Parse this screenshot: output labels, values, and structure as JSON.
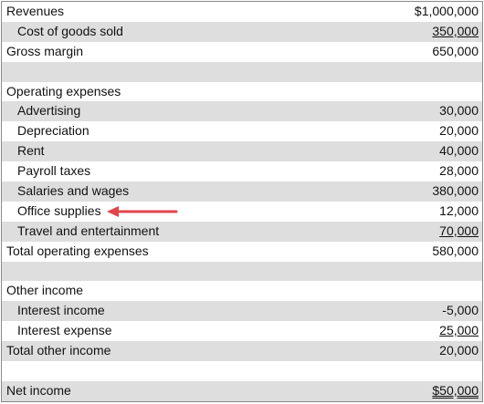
{
  "rows": [
    {
      "label": "Revenues",
      "value": "$1,000,000",
      "indent": false,
      "shaded": false,
      "underline": "none"
    },
    {
      "label": "Cost of goods sold",
      "value": "350,000",
      "indent": true,
      "shaded": true,
      "underline": "single"
    },
    {
      "label": "Gross margin",
      "value": "650,000",
      "indent": false,
      "shaded": false,
      "underline": "none"
    },
    {
      "label": "",
      "value": "",
      "indent": false,
      "shaded": true,
      "underline": "none"
    },
    {
      "label": "Operating expenses",
      "value": "",
      "indent": false,
      "shaded": false,
      "underline": "none"
    },
    {
      "label": "Advertising",
      "value": "30,000",
      "indent": true,
      "shaded": true,
      "underline": "none"
    },
    {
      "label": "Depreciation",
      "value": "20,000",
      "indent": true,
      "shaded": false,
      "underline": "none"
    },
    {
      "label": "Rent",
      "value": "40,000",
      "indent": true,
      "shaded": true,
      "underline": "none"
    },
    {
      "label": "Payroll taxes",
      "value": "28,000",
      "indent": true,
      "shaded": false,
      "underline": "none"
    },
    {
      "label": "Salaries and wages",
      "value": "380,000",
      "indent": true,
      "shaded": true,
      "underline": "none"
    },
    {
      "label": "Office supplies",
      "value": "12,000",
      "indent": true,
      "shaded": false,
      "underline": "none",
      "arrow": true
    },
    {
      "label": "Travel and entertainment",
      "value": "70,000",
      "indent": true,
      "shaded": true,
      "underline": "single"
    },
    {
      "label": "Total operating expenses",
      "value": "580,000",
      "indent": false,
      "shaded": false,
      "underline": "none"
    },
    {
      "label": "",
      "value": "",
      "indent": false,
      "shaded": true,
      "underline": "none"
    },
    {
      "label": "Other income",
      "value": "",
      "indent": false,
      "shaded": false,
      "underline": "none"
    },
    {
      "label": "Interest income",
      "value": "-5,000",
      "indent": true,
      "shaded": true,
      "underline": "none"
    },
    {
      "label": "Interest expense",
      "value": "25,000",
      "indent": true,
      "shaded": false,
      "underline": "single"
    },
    {
      "label": "Total other income",
      "value": "20,000",
      "indent": false,
      "shaded": true,
      "underline": "none"
    },
    {
      "label": "",
      "value": "",
      "indent": false,
      "shaded": false,
      "underline": "none"
    },
    {
      "label": "Net income",
      "value": "$50,000",
      "indent": false,
      "shaded": true,
      "underline": "double"
    }
  ],
  "colors": {
    "shade": "#dedede",
    "arrow": "#e0454a"
  },
  "icons": {
    "pointer": "left-arrow-icon"
  }
}
